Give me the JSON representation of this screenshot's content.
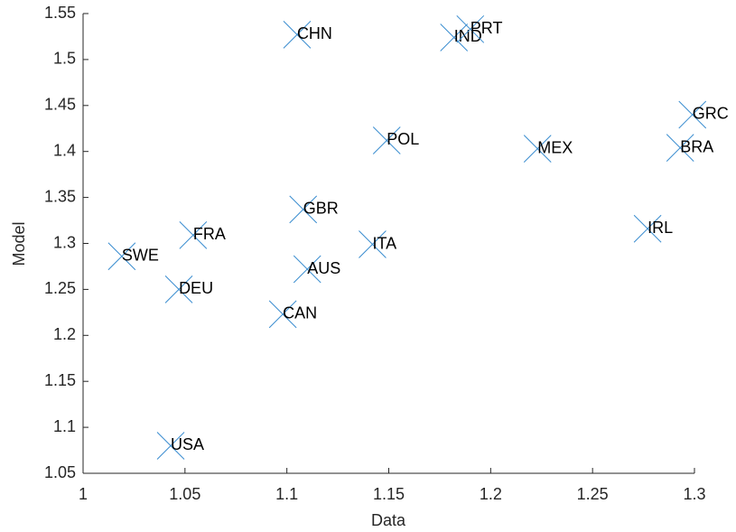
{
  "chart_data": {
    "type": "scatter",
    "x_label": "Data",
    "y_label": "Model",
    "labels": [
      "CHN",
      "IND",
      "PRT",
      "GRC",
      "POL",
      "MEX",
      "BRA",
      "GBR",
      "IRL",
      "FRA",
      "ITA",
      "SWE",
      "AUS",
      "DEU",
      "CAN",
      "USA"
    ],
    "x": [
      1.105,
      1.182,
      1.19,
      1.299,
      1.149,
      1.223,
      1.293,
      1.108,
      1.277,
      1.054,
      1.142,
      1.019,
      1.11,
      1.047,
      1.098,
      1.043
    ],
    "y": [
      1.527,
      1.524,
      1.533,
      1.44,
      1.412,
      1.403,
      1.404,
      1.337,
      1.316,
      1.309,
      1.299,
      1.286,
      1.272,
      1.25,
      1.223,
      1.08
    ],
    "color": "#3a8dd0",
    "xlim": [
      1,
      1.3
    ],
    "xticks": [
      1,
      1.05,
      1.1,
      1.15,
      1.2,
      1.25,
      1.3
    ],
    "ylim": [
      1.05,
      1.55
    ],
    "yticks": [
      1.05,
      1.1,
      1.15,
      1.2,
      1.25,
      1.3,
      1.35,
      1.4,
      1.45,
      1.5,
      1.55
    ]
  }
}
